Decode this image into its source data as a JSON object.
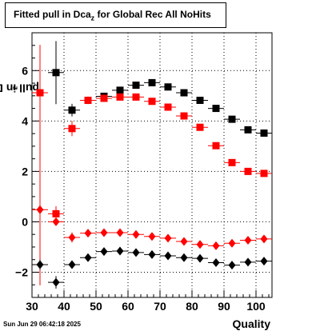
{
  "title": {
    "main": "Fitted pull in Dca",
    "sub": "z",
    "rest": " for Global Rec All NoHits"
  },
  "ylabel": {
    "main": "pull in Dca",
    "sub": "z"
  },
  "xlabel": "Quality",
  "timestamp": "Sun Jun 29 06:42:18 2025",
  "chart_data": {
    "type": "scatter",
    "x_ticks": [
      30,
      40,
      50,
      60,
      70,
      80,
      90,
      100
    ],
    "y_ticks": [
      -2,
      0,
      2,
      4,
      6
    ],
    "xlim": [
      30,
      105
    ],
    "ylim": [
      -3,
      7.5
    ],
    "grid": true,
    "series": [
      {
        "color": "#000000",
        "marker": "square",
        "x": [
          32.5,
          37.5,
          42.5,
          47.5,
          52.5,
          57.5,
          62.5,
          67.5,
          72.5,
          77.5,
          82.5,
          87.5,
          92.5,
          97.5,
          102.5
        ],
        "y": [
          null,
          5.92,
          4.43,
          4.82,
          4.98,
          5.22,
          5.42,
          5.52,
          5.35,
          5.12,
          4.82,
          4.5,
          4.07,
          3.65,
          3.52
        ],
        "err": [
          null,
          1.25,
          0.25,
          0.12,
          0.08,
          0.06,
          0.06,
          0.06,
          0.06,
          0.06,
          0.06,
          0.06,
          0.06,
          0.08,
          0.1
        ]
      },
      {
        "color": "#ff0000",
        "marker": "square",
        "x": [
          32.5,
          37.5,
          42.5,
          47.5,
          52.5,
          57.5,
          62.5,
          67.5,
          72.5,
          77.5,
          82.5,
          87.5,
          92.5,
          97.5,
          102.5
        ],
        "y": [
          5.12,
          0.32,
          3.7,
          4.82,
          4.9,
          4.95,
          4.95,
          4.78,
          4.55,
          4.2,
          3.75,
          3.02,
          2.35,
          2.0,
          1.92
        ],
        "err": [
          1.9,
          0.3,
          0.3,
          0.15,
          0.08,
          0.06,
          0.06,
          0.06,
          0.06,
          0.06,
          0.06,
          0.06,
          0.06,
          0.08,
          0.1
        ]
      },
      {
        "color": "#ff0000",
        "marker": "diamond",
        "x": [
          32.5,
          37.5,
          42.5,
          47.5,
          52.5,
          57.5,
          62.5,
          67.5,
          72.5,
          77.5,
          82.5,
          87.5,
          92.5,
          97.5,
          102.5
        ],
        "y": [
          0.48,
          0.0,
          -0.62,
          -0.45,
          -0.43,
          -0.43,
          -0.5,
          -0.58,
          -0.65,
          -0.78,
          -0.9,
          -0.95,
          -0.85,
          -0.73,
          -0.68
        ],
        "err": [
          3.0,
          0.12,
          0.2,
          0.08,
          0.05,
          0.04,
          0.04,
          0.04,
          0.04,
          0.04,
          0.04,
          0.04,
          0.04,
          0.05,
          0.06
        ]
      },
      {
        "color": "#000000",
        "marker": "diamond",
        "x": [
          32.5,
          37.5,
          42.5,
          47.5,
          52.5,
          57.5,
          62.5,
          67.5,
          72.5,
          77.5,
          82.5,
          87.5,
          92.5,
          97.5,
          102.5
        ],
        "y": [
          -1.7,
          -2.4,
          -1.7,
          -1.42,
          -1.18,
          -1.16,
          -1.22,
          -1.3,
          -1.35,
          -1.42,
          -1.45,
          -1.62,
          -1.72,
          -1.6,
          -1.56
        ],
        "err": [
          0.2,
          0.25,
          0.15,
          0.08,
          0.05,
          0.04,
          0.04,
          0.04,
          0.04,
          0.04,
          0.04,
          0.04,
          0.04,
          0.05,
          0.06
        ]
      }
    ]
  }
}
